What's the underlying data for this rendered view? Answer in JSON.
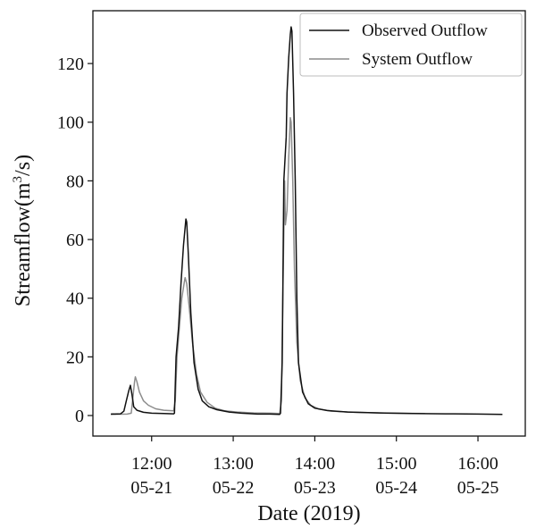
{
  "chart_data": {
    "type": "line",
    "title": "",
    "xlabel": "Date (2019)",
    "ylabel": "Streamflow(m",
    "ylabel_sup": "3",
    "ylabel_end": "/s)",
    "xticks": [
      {
        "line1": "12:00",
        "line2": "05-21",
        "x": 12.0
      },
      {
        "line1": "13:00",
        "line2": "05-22",
        "x": 13.0
      },
      {
        "line1": "14:00",
        "line2": "05-23",
        "x": 14.0
      },
      {
        "line1": "15:00",
        "line2": "05-24",
        "x": 15.0
      },
      {
        "line1": "16:00",
        "line2": "05-25",
        "x": 16.0
      }
    ],
    "yticks": [
      0,
      20,
      40,
      60,
      80,
      100,
      120
    ],
    "xlim": [
      11.28,
      16.58
    ],
    "ylim": [
      -7,
      138
    ],
    "grid": false,
    "legend_position": "top-right",
    "series": [
      {
        "name": "Observed Outflow",
        "color": "#111111",
        "points": [
          [
            11.5,
            0.5
          ],
          [
            11.62,
            0.6
          ],
          [
            11.66,
            1.5
          ],
          [
            11.69,
            5
          ],
          [
            11.72,
            8.5
          ],
          [
            11.74,
            10.3
          ],
          [
            11.76,
            7
          ],
          [
            11.78,
            3
          ],
          [
            11.82,
            1.8
          ],
          [
            11.9,
            1.1
          ],
          [
            12.0,
            0.8
          ],
          [
            12.15,
            0.7
          ],
          [
            12.27,
            0.6
          ],
          [
            12.28,
            0.8
          ],
          [
            12.3,
            20
          ],
          [
            12.33,
            30
          ],
          [
            12.36,
            45
          ],
          [
            12.39,
            58
          ],
          [
            12.41,
            64
          ],
          [
            12.42,
            67
          ],
          [
            12.43,
            66
          ],
          [
            12.45,
            55
          ],
          [
            12.48,
            35
          ],
          [
            12.52,
            18
          ],
          [
            12.57,
            9
          ],
          [
            12.62,
            5
          ],
          [
            12.7,
            3
          ],
          [
            12.8,
            2
          ],
          [
            12.95,
            1.2
          ],
          [
            13.1,
            0.8
          ],
          [
            13.3,
            0.5
          ],
          [
            13.45,
            0.5
          ],
          [
            13.57,
            0.4
          ],
          [
            13.58,
            0.8
          ],
          [
            13.6,
            18
          ],
          [
            13.62,
            80
          ],
          [
            13.64,
            90
          ],
          [
            13.65,
            95
          ],
          [
            13.66,
            110
          ],
          [
            13.68,
            122
          ],
          [
            13.7,
            130
          ],
          [
            13.71,
            132.5
          ],
          [
            13.72,
            131
          ],
          [
            13.74,
            110
          ],
          [
            13.76,
            80
          ],
          [
            13.78,
            40
          ],
          [
            13.8,
            18
          ],
          [
            13.85,
            8
          ],
          [
            13.92,
            4
          ],
          [
            14.0,
            2.5
          ],
          [
            14.15,
            1.7
          ],
          [
            14.4,
            1.2
          ],
          [
            14.8,
            0.9
          ],
          [
            15.2,
            0.7
          ],
          [
            15.6,
            0.6
          ],
          [
            16.0,
            0.5
          ],
          [
            16.3,
            0.4
          ]
        ]
      },
      {
        "name": "System Outflow",
        "color": "#8c8c8c",
        "points": [
          [
            11.5,
            0.4
          ],
          [
            11.7,
            0.5
          ],
          [
            11.75,
            0.8
          ],
          [
            11.77,
            6
          ],
          [
            11.79,
            11.5
          ],
          [
            11.8,
            13.2
          ],
          [
            11.82,
            11.5
          ],
          [
            11.85,
            8
          ],
          [
            11.9,
            5
          ],
          [
            11.96,
            3.5
          ],
          [
            12.05,
            2.3
          ],
          [
            12.15,
            1.8
          ],
          [
            12.27,
            1.6
          ],
          [
            12.29,
            5
          ],
          [
            12.31,
            20
          ],
          [
            12.34,
            30
          ],
          [
            12.37,
            40
          ],
          [
            12.4,
            45.5
          ],
          [
            12.41,
            47
          ],
          [
            12.43,
            45
          ],
          [
            12.46,
            37
          ],
          [
            12.5,
            25
          ],
          [
            12.55,
            14
          ],
          [
            12.6,
            8
          ],
          [
            12.68,
            4.5
          ],
          [
            12.78,
            2.5
          ],
          [
            12.9,
            1.6
          ],
          [
            13.05,
            1.2
          ],
          [
            13.25,
            0.9
          ],
          [
            13.45,
            0.8
          ],
          [
            13.57,
            0.7
          ],
          [
            13.59,
            5
          ],
          [
            13.61,
            45
          ],
          [
            13.63,
            80
          ],
          [
            13.64,
            65
          ],
          [
            13.66,
            70
          ],
          [
            13.68,
            88
          ],
          [
            13.7,
            101.5
          ],
          [
            13.71,
            100
          ],
          [
            13.73,
            80
          ],
          [
            13.75,
            50
          ],
          [
            13.78,
            25
          ],
          [
            13.82,
            12
          ],
          [
            13.88,
            6
          ],
          [
            13.95,
            3.5
          ],
          [
            14.05,
            2.2
          ],
          [
            14.2,
            1.5
          ],
          [
            14.5,
            1.1
          ],
          [
            14.9,
            0.8
          ],
          [
            15.35,
            0.7
          ]
        ]
      }
    ]
  }
}
